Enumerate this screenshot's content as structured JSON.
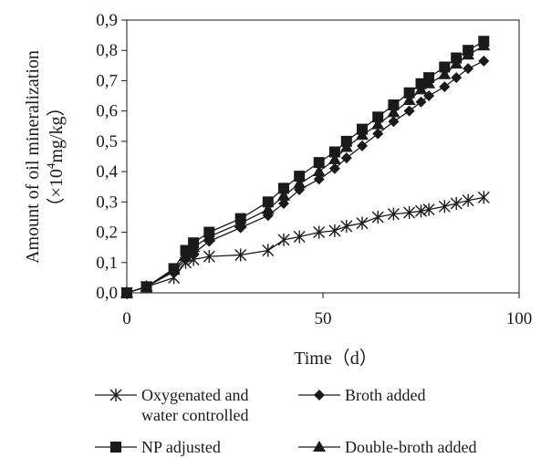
{
  "chart_data": {
    "type": "line",
    "title": "",
    "xlabel": "Time（d）",
    "ylabel": "Amount of oil mineralization",
    "ylabel_unit_prefix": "（×10",
    "ylabel_unit_sup": "4",
    "ylabel_unit_suffix": "mg/kg）",
    "xlim": [
      0,
      100
    ],
    "ylim": [
      0,
      0.9
    ],
    "xticks": [
      "0",
      "50",
      "100"
    ],
    "yticks": [
      "0,0",
      "0,1",
      "0,2",
      "0,3",
      "0,4",
      "0,5",
      "0,6",
      "0,7",
      "0,8",
      "0,9"
    ],
    "grid": false,
    "legend_position": "bottom",
    "series": [
      {
        "name": "Oxygenated and water controlled",
        "name_lines": [
          "Oxygenated and",
          "water controlled"
        ],
        "marker": "asterisk",
        "color": "#1a1a1a",
        "x": [
          0,
          5,
          12,
          15,
          17,
          21,
          29,
          36,
          40,
          44,
          49,
          53,
          56,
          60,
          64,
          68,
          72,
          75,
          77,
          81,
          84,
          87,
          91
        ],
        "y": [
          0,
          0.02,
          0.05,
          0.1,
          0.11,
          0.12,
          0.125,
          0.14,
          0.175,
          0.185,
          0.2,
          0.205,
          0.22,
          0.23,
          0.25,
          0.26,
          0.265,
          0.27,
          0.275,
          0.285,
          0.295,
          0.305,
          0.315
        ]
      },
      {
        "name": "Broth added",
        "name_lines": [
          "Broth added"
        ],
        "marker": "diamond",
        "color": "#1a1a1a",
        "x": [
          0,
          5,
          12,
          15,
          17,
          21,
          29,
          36,
          40,
          44,
          49,
          53,
          56,
          60,
          64,
          68,
          72,
          75,
          77,
          81,
          84,
          87,
          91
        ],
        "y": [
          0,
          0.02,
          0.07,
          0.11,
          0.13,
          0.17,
          0.215,
          0.255,
          0.295,
          0.34,
          0.375,
          0.41,
          0.445,
          0.485,
          0.525,
          0.565,
          0.6,
          0.63,
          0.65,
          0.68,
          0.71,
          0.74,
          0.765
        ]
      },
      {
        "name": "NP adjusted",
        "name_lines": [
          "NP adjusted"
        ],
        "marker": "square",
        "color": "#1a1a1a",
        "x": [
          0,
          5,
          12,
          15,
          17,
          21,
          29,
          36,
          40,
          44,
          49,
          53,
          56,
          60,
          64,
          68,
          72,
          75,
          77,
          81,
          84,
          87,
          91
        ],
        "y": [
          0,
          0.02,
          0.08,
          0.14,
          0.165,
          0.2,
          0.245,
          0.3,
          0.345,
          0.385,
          0.43,
          0.465,
          0.5,
          0.54,
          0.58,
          0.62,
          0.66,
          0.69,
          0.71,
          0.745,
          0.775,
          0.8,
          0.83
        ]
      },
      {
        "name": "Double-broth added",
        "name_lines": [
          "Double-broth added"
        ],
        "marker": "triangle",
        "color": "#1a1a1a",
        "x": [
          0,
          5,
          12,
          15,
          17,
          21,
          29,
          36,
          40,
          44,
          49,
          53,
          56,
          60,
          64,
          68,
          72,
          75,
          77,
          81,
          84,
          87,
          91
        ],
        "y": [
          0,
          0.02,
          0.075,
          0.12,
          0.15,
          0.185,
          0.23,
          0.275,
          0.32,
          0.36,
          0.4,
          0.44,
          0.48,
          0.52,
          0.555,
          0.595,
          0.635,
          0.67,
          0.69,
          0.72,
          0.755,
          0.785,
          0.815
        ]
      }
    ]
  }
}
